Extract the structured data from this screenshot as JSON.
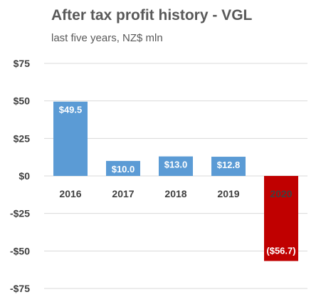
{
  "chart_data": {
    "type": "bar",
    "title": "After tax profit history - VGL",
    "subtitle": "last five years, NZ$ mln",
    "xlabel": "",
    "ylabel": "",
    "categories": [
      "2016",
      "2017",
      "2018",
      "2019",
      "2020"
    ],
    "values": [
      49.5,
      10.0,
      13.0,
      12.8,
      -56.7
    ],
    "data_labels": [
      "$49.5",
      "$10.0",
      "$13.0",
      "$12.8",
      "($56.7)"
    ],
    "ylim": [
      -75,
      75
    ],
    "yticks": [
      75,
      50,
      25,
      0,
      -25,
      -50,
      -75
    ],
    "ytick_labels": [
      "$75",
      "$50",
      "$25",
      "$0",
      "-$25",
      "-$50",
      "-$75"
    ],
    "grid": true,
    "legend": "none",
    "colors": {
      "positive": "#5b9bd5",
      "negative": "#c00000",
      "gridline": "#d9d9d9",
      "text": "#404040",
      "title": "#595959"
    }
  }
}
